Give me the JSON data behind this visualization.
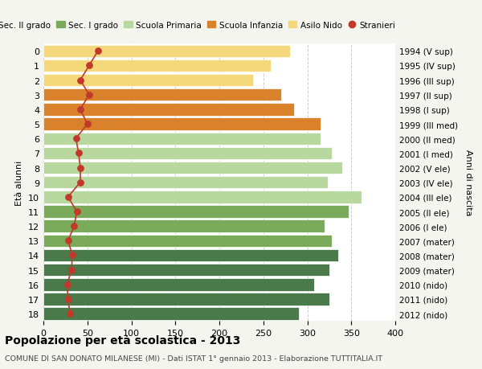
{
  "ages": [
    18,
    17,
    16,
    15,
    14,
    13,
    12,
    11,
    10,
    9,
    8,
    7,
    6,
    5,
    4,
    3,
    2,
    1,
    0
  ],
  "right_labels": [
    "1994 (V sup)",
    "1995 (IV sup)",
    "1996 (III sup)",
    "1997 (II sup)",
    "1998 (I sup)",
    "1999 (III med)",
    "2000 (II med)",
    "2001 (I med)",
    "2002 (V ele)",
    "2003 (IV ele)",
    "2004 (III ele)",
    "2005 (II ele)",
    "2006 (I ele)",
    "2007 (mater)",
    "2008 (mater)",
    "2009 (mater)",
    "2010 (nido)",
    "2011 (nido)",
    "2012 (nido)"
  ],
  "bar_values": [
    290,
    325,
    308,
    325,
    335,
    328,
    320,
    347,
    362,
    323,
    340,
    328,
    315,
    315,
    285,
    270,
    238,
    258,
    280
  ],
  "stranieri_values": [
    30,
    28,
    27,
    32,
    33,
    28,
    35,
    38,
    28,
    42,
    42,
    40,
    37,
    50,
    42,
    52,
    42,
    52,
    62
  ],
  "bar_colors": [
    "#4a7a4a",
    "#4a7a4a",
    "#4a7a4a",
    "#4a7a4a",
    "#4a7a4a",
    "#7aaa5a",
    "#7aaa5a",
    "#7aaa5a",
    "#b8d8a0",
    "#b8d8a0",
    "#b8d8a0",
    "#b8d8a0",
    "#b8d8a0",
    "#d9822b",
    "#d9822b",
    "#d9822b",
    "#f5d87a",
    "#f5d87a",
    "#f5d87a"
  ],
  "legend_labels": [
    "Sec. II grado",
    "Sec. I grado",
    "Scuola Primaria",
    "Scuola Infanzia",
    "Asilo Nido",
    "Stranieri"
  ],
  "legend_colors": [
    "#4a7a4a",
    "#7aaa5a",
    "#b8d8a0",
    "#d9822b",
    "#f5d87a",
    "#c0392b"
  ],
  "stranieri_color": "#c0392b",
  "title": "Popolazione per età scolastica - 2013",
  "subtitle": "COMUNE DI SAN DONATO MILANESE (MI) - Dati ISTAT 1° gennaio 2013 - Elaborazione TUTTITALIA.IT",
  "ylabel_left": "Età alunni",
  "ylabel_right": "Anni di nascita",
  "xlim": [
    0,
    400
  ],
  "bg_color": "#f5f5f0",
  "bar_bg_color": "#ffffff",
  "grid_color": "#cccccc"
}
